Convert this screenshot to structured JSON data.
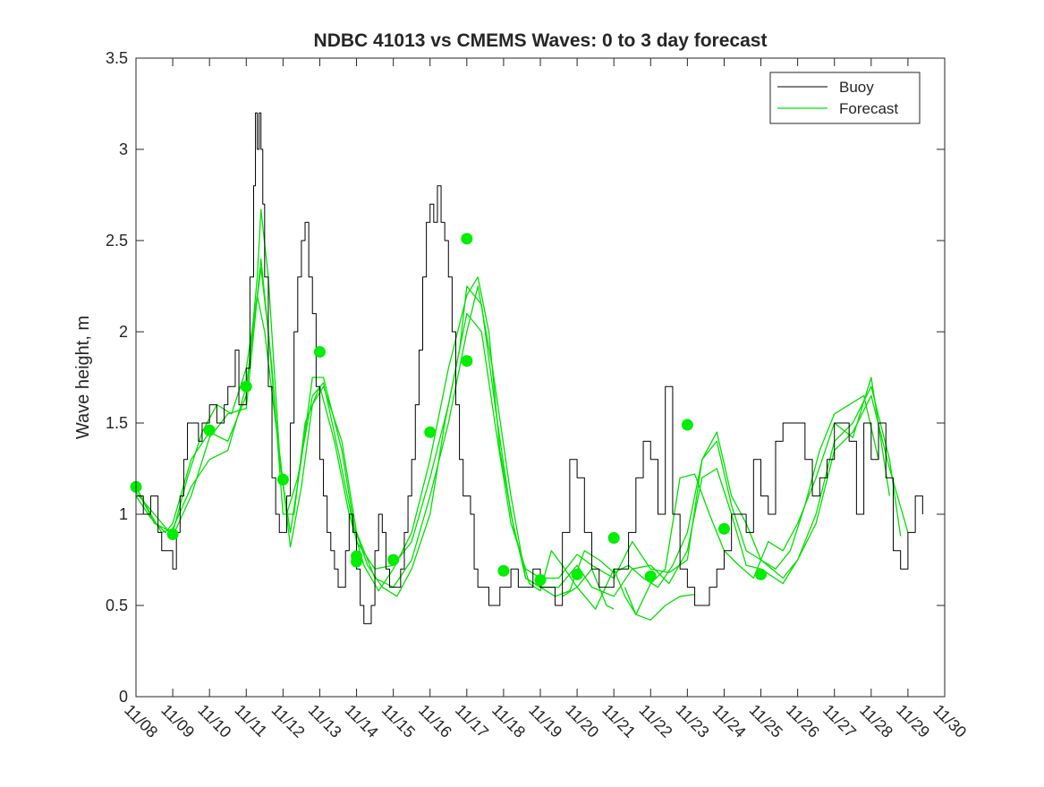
{
  "chart_data": {
    "type": "line",
    "title": "NDBC 41013 vs CMEMS Waves: 0 to 3 day forecast",
    "xlabel": "",
    "ylabel": "Wave height, m",
    "xlim": [
      0,
      22
    ],
    "ylim": [
      0,
      3.5
    ],
    "yticks": [
      0,
      0.5,
      1,
      1.5,
      2,
      2.5,
      3,
      3.5
    ],
    "ytick_labels": [
      "0",
      "0.5",
      "1",
      "1.5",
      "2",
      "2.5",
      "3",
      "3.5"
    ],
    "xtick_labels": [
      "11/08",
      "11/09",
      "11/10",
      "11/11",
      "11/12",
      "11/13",
      "11/14",
      "11/15",
      "11/16",
      "11/17",
      "11/18",
      "11/19",
      "11/20",
      "11/21",
      "11/22",
      "11/23",
      "11/24",
      "11/25",
      "11/26",
      "11/27",
      "11/28",
      "11/29",
      "11/30"
    ],
    "legend": {
      "placement": "top-right",
      "entries": [
        {
          "label": "Buoy",
          "color": "#000000"
        },
        {
          "label": "Forecast",
          "color": "#00e000"
        }
      ]
    },
    "colors": {
      "buoy": "#000000",
      "forecast": "#00e000",
      "marker": "#00ee00"
    },
    "series": [
      {
        "name": "Buoy",
        "x": [
          0,
          0.1,
          0.2,
          0.3,
          0.4,
          0.5,
          0.6,
          0.7,
          0.8,
          0.9,
          1.0,
          1.1,
          1.2,
          1.3,
          1.4,
          1.5,
          1.6,
          1.7,
          1.8,
          1.9,
          2.0,
          2.1,
          2.2,
          2.3,
          2.4,
          2.5,
          2.6,
          2.7,
          2.8,
          2.9,
          3.0,
          3.1,
          3.2,
          3.25,
          3.3,
          3.35,
          3.4,
          3.45,
          3.5,
          3.6,
          3.7,
          3.8,
          3.9,
          4.0,
          4.1,
          4.2,
          4.3,
          4.4,
          4.5,
          4.6,
          4.7,
          4.8,
          4.9,
          5.0,
          5.1,
          5.2,
          5.3,
          5.4,
          5.5,
          5.6,
          5.7,
          5.8,
          5.9,
          6.0,
          6.1,
          6.2,
          6.3,
          6.4,
          6.5,
          6.6,
          6.7,
          6.8,
          6.9,
          7.0,
          7.1,
          7.2,
          7.3,
          7.4,
          7.5,
          7.6,
          7.7,
          7.8,
          7.9,
          8.0,
          8.1,
          8.2,
          8.3,
          8.4,
          8.5,
          8.6,
          8.7,
          8.8,
          8.9,
          9.0,
          9.1,
          9.2,
          9.3,
          9.4,
          9.5,
          9.6,
          9.7,
          9.8,
          9.9,
          10.0,
          10.2,
          10.4,
          10.6,
          10.8,
          11.0,
          11.2,
          11.4,
          11.6,
          11.8,
          12.0,
          12.2,
          12.4,
          12.6,
          12.8,
          13.0,
          13.2,
          13.4,
          13.6,
          13.8,
          14.0,
          14.2,
          14.4,
          14.6,
          14.8,
          15.0,
          15.2,
          15.4,
          15.6,
          15.8,
          16.0,
          16.2,
          16.4,
          16.6,
          16.8,
          17.0,
          17.2,
          17.4,
          17.6,
          17.8,
          18.0,
          18.2,
          18.4,
          18.6,
          18.8,
          19.0,
          19.2,
          19.4,
          19.6,
          19.8,
          20.0,
          20.2,
          20.4,
          20.6,
          20.8,
          21.0,
          21.2,
          21.3,
          21.4
        ],
        "values": [
          1.1,
          1.1,
          1.0,
          1.0,
          1.1,
          1.1,
          0.9,
          0.8,
          0.8,
          0.8,
          0.7,
          0.9,
          1.1,
          1.3,
          1.5,
          1.5,
          1.5,
          1.4,
          1.5,
          1.5,
          1.6,
          1.6,
          1.5,
          1.5,
          1.6,
          1.7,
          1.7,
          1.9,
          1.6,
          1.6,
          1.8,
          2.3,
          2.8,
          3.2,
          3.0,
          3.2,
          3.0,
          2.7,
          2.3,
          1.7,
          1.2,
          1.0,
          0.9,
          0.9,
          1.1,
          1.5,
          2.0,
          2.3,
          2.5,
          2.6,
          2.3,
          2.1,
          1.7,
          1.3,
          1.1,
          0.9,
          0.8,
          0.7,
          0.6,
          0.6,
          0.8,
          1.0,
          0.9,
          0.7,
          0.5,
          0.4,
          0.4,
          0.5,
          0.8,
          1.0,
          0.9,
          0.7,
          0.6,
          0.6,
          0.6,
          0.7,
          0.9,
          1.1,
          1.3,
          1.6,
          1.9,
          2.3,
          2.6,
          2.7,
          2.6,
          2.8,
          2.6,
          2.5,
          2.3,
          2.0,
          1.6,
          1.3,
          1.1,
          1.1,
          1.0,
          0.7,
          0.6,
          0.6,
          0.6,
          0.5,
          0.5,
          0.5,
          0.6,
          0.6,
          0.7,
          0.6,
          0.6,
          0.7,
          0.6,
          0.6,
          0.5,
          0.9,
          1.3,
          1.2,
          0.9,
          0.7,
          0.6,
          0.6,
          0.7,
          0.7,
          0.9,
          1.2,
          1.4,
          1.3,
          1.0,
          1.7,
          1.0,
          0.7,
          0.6,
          0.5,
          0.5,
          0.6,
          0.7,
          0.8,
          1.0,
          1.0,
          0.9,
          1.3,
          1.1,
          1.0,
          1.4,
          1.5,
          1.5,
          1.5,
          1.3,
          1.1,
          1.2,
          1.3,
          1.5,
          1.5,
          1.4,
          1.0,
          1.5,
          1.3,
          1.5,
          1.2,
          0.8,
          0.7,
          0.9,
          1.1,
          1.1,
          1.0
        ]
      },
      {
        "name": "Forecast",
        "x": [
          0,
          0.4,
          0.7,
          1.0,
          1.5,
          2.0,
          2.5,
          3.0,
          3.4,
          3.6,
          3.9,
          4.2,
          4.5,
          4.8,
          5.1,
          5.6,
          6.0,
          6.5,
          7.0,
          7.5,
          8.0,
          8.5,
          9.0,
          9.4,
          9.8,
          10.2,
          10.6,
          11.0,
          11.5,
          12.0,
          12.4,
          13.0,
          13.5,
          14.0,
          14.5,
          15.0,
          15.4,
          15.8,
          16.2,
          16.6,
          17.0,
          17.6,
          18.0,
          18.5,
          19.0,
          19.5,
          20.0,
          20.5,
          21.0
        ],
        "values": [
          1.15,
          1.0,
          0.9,
          0.92,
          1.15,
          1.3,
          1.35,
          1.7,
          2.35,
          2.0,
          1.3,
          0.9,
          1.3,
          1.75,
          1.75,
          1.35,
          0.85,
          0.7,
          0.72,
          0.85,
          1.2,
          1.6,
          2.1,
          2.0,
          1.45,
          0.95,
          0.7,
          0.65,
          0.65,
          0.78,
          0.72,
          0.65,
          0.85,
          0.7,
          0.68,
          0.75,
          1.3,
          1.45,
          1.1,
          0.95,
          0.75,
          0.65,
          0.75,
          0.95,
          1.35,
          1.45,
          1.65,
          1.25,
          0.9
        ]
      },
      {
        "name": "Forecast",
        "x": [
          0,
          0.4,
          0.8,
          1.0,
          1.5,
          2.0,
          2.5,
          3.0,
          3.3,
          3.4,
          3.6,
          3.9,
          4.2,
          4.5,
          4.8,
          5.1,
          5.6,
          6.0,
          6.5,
          7.0,
          7.5,
          8.0,
          8.5,
          9.0,
          9.3,
          9.7,
          10.2,
          10.6,
          11.0,
          11.5,
          12.0,
          12.4,
          13.0,
          13.5,
          14.0,
          14.5,
          15.0,
          15.4,
          15.8,
          16.2,
          16.6,
          17.0,
          17.6,
          18.0,
          18.5,
          19.0,
          19.5,
          20.0,
          20.5,
          20.8
        ],
        "values": [
          1.1,
          0.98,
          0.9,
          0.95,
          1.3,
          1.45,
          1.4,
          1.65,
          2.3,
          2.67,
          2.3,
          1.35,
          0.82,
          1.15,
          1.6,
          1.7,
          1.4,
          0.9,
          0.65,
          0.6,
          0.75,
          1.1,
          1.5,
          2.0,
          2.25,
          1.8,
          1.1,
          0.65,
          0.6,
          0.6,
          0.72,
          0.6,
          0.55,
          0.7,
          0.72,
          0.62,
          0.8,
          1.2,
          1.25,
          1.0,
          0.72,
          0.7,
          0.62,
          0.75,
          1.0,
          1.4,
          1.5,
          1.7,
          1.3,
          0.88
        ]
      },
      {
        "name": "Forecast",
        "x": [
          0,
          0.5,
          1.0,
          1.5,
          2.0,
          2.5,
          3.0,
          3.4,
          3.7,
          4.0,
          4.3,
          4.6,
          5.0,
          5.4,
          5.8,
          6.2,
          6.6,
          7.0,
          7.5,
          8.0,
          8.5,
          9.0,
          9.3,
          9.6,
          9.9,
          10.3,
          10.7,
          11.0,
          11.3,
          11.6,
          12.0,
          12.5,
          13.0,
          13.3,
          13.6,
          14.0,
          14.4,
          14.8,
          15.2,
          15.6,
          16.0,
          16.4,
          16.8,
          17.2,
          17.6,
          18.0,
          18.5,
          19.0,
          19.5,
          20.0,
          20.5
        ],
        "values": [
          1.12,
          1.0,
          0.88,
          1.1,
          1.42,
          1.55,
          1.58,
          2.4,
          1.8,
          1.0,
          1.0,
          1.5,
          1.7,
          1.4,
          1.0,
          0.72,
          0.58,
          0.7,
          0.9,
          1.3,
          1.8,
          2.2,
          2.3,
          2.0,
          1.35,
          0.9,
          0.62,
          0.58,
          0.8,
          0.72,
          0.6,
          0.48,
          0.7,
          0.55,
          0.45,
          0.62,
          0.7,
          1.2,
          1.22,
          1.0,
          0.8,
          0.72,
          0.65,
          0.85,
          0.8,
          0.95,
          1.2,
          1.5,
          1.42,
          1.75,
          1.1
        ]
      },
      {
        "name": "Forecast",
        "x": [
          0,
          0.5,
          1.0,
          1.4,
          1.8,
          2.2,
          2.6,
          3.0,
          3.3,
          3.5,
          3.8,
          4.1,
          4.4,
          4.8,
          5.1,
          5.5,
          5.9,
          6.3,
          6.7,
          7.1,
          7.5,
          8.0,
          8.4,
          8.8,
          9.0,
          9.4,
          9.8,
          10.2,
          10.6,
          11.0,
          11.4,
          11.8,
          12.2,
          12.6,
          13.0,
          13.4,
          13.8,
          14.2,
          14.6,
          15.0,
          15.4,
          15.8,
          16.2,
          16.6,
          17.0,
          17.4,
          17.8,
          18.2,
          18.6,
          19.0,
          19.4,
          19.8,
          20.2
        ],
        "values": [
          1.15,
          0.95,
          0.9,
          1.2,
          1.45,
          1.6,
          1.55,
          1.8,
          2.2,
          2.0,
          1.5,
          1.0,
          1.2,
          1.65,
          1.72,
          1.35,
          0.95,
          0.72,
          0.6,
          0.55,
          0.7,
          1.0,
          1.5,
          1.9,
          2.25,
          2.15,
          1.55,
          1.0,
          0.65,
          0.6,
          0.55,
          0.58,
          0.8,
          0.75,
          0.68,
          0.72,
          0.65,
          0.6,
          0.72,
          0.9,
          1.3,
          1.4,
          1.05,
          0.8,
          0.75,
          0.7,
          0.8,
          1.05,
          1.35,
          1.55,
          1.6,
          1.65,
          1.3
        ]
      },
      {
        "name": "Forecast",
        "x": [
          11.6,
          12.0,
          12.4,
          12.8,
          13.0
        ],
        "values": [
          0.55,
          0.6,
          0.7,
          0.5,
          0.48
        ]
      },
      {
        "name": "Forecast",
        "x": [
          13.3,
          13.6,
          14.0,
          14.4,
          14.8,
          15.2
        ],
        "values": [
          0.6,
          0.45,
          0.42,
          0.5,
          0.55,
          0.56
        ]
      }
    ],
    "markers": {
      "name": "Forecast markers",
      "x": [
        0,
        1,
        2,
        3,
        4,
        5,
        6,
        6,
        7,
        8,
        9,
        9,
        10,
        11,
        12,
        13,
        14,
        15,
        16,
        17
      ],
      "values": [
        1.15,
        0.89,
        1.46,
        1.7,
        1.19,
        1.89,
        0.77,
        0.74,
        0.75,
        1.45,
        1.84,
        2.51,
        0.69,
        0.64,
        0.67,
        0.87,
        0.66,
        1.49,
        0.92,
        0.67
      ]
    }
  }
}
